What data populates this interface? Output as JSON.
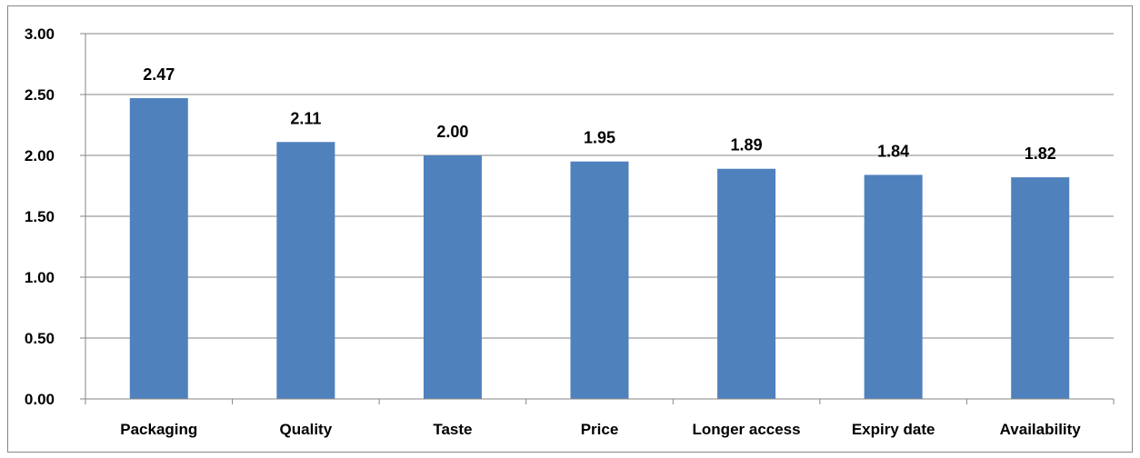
{
  "chart_data": {
    "type": "bar",
    "categories": [
      "Packaging",
      "Quality",
      "Taste",
      "Price",
      "Longer access",
      "Expiry date",
      "Availability"
    ],
    "values": [
      2.47,
      2.11,
      2.0,
      1.95,
      1.89,
      1.84,
      1.82
    ],
    "value_labels": [
      "2.47",
      "2.11",
      "2.00",
      "1.95",
      "1.89",
      "1.84",
      "1.82"
    ],
    "y_ticks": [
      "0.00",
      "0.50",
      "1.00",
      "1.50",
      "2.00",
      "2.50",
      "3.00"
    ],
    "ylim": [
      0,
      3
    ],
    "grid": true,
    "legend": "none",
    "bar_color": "#4f81bd",
    "gridline_color": "#868686"
  }
}
